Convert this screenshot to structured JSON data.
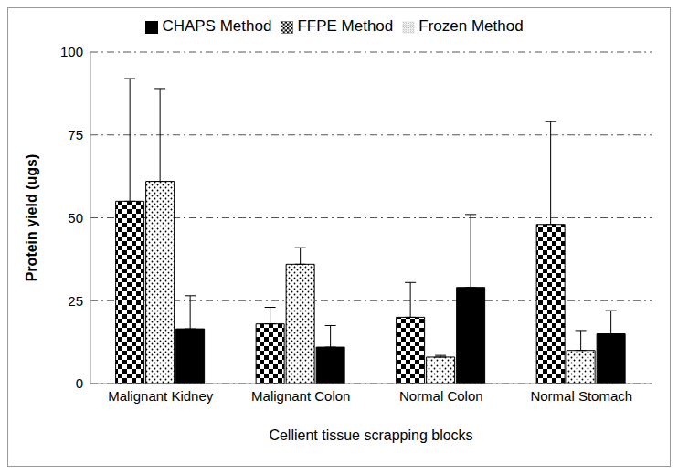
{
  "chart_data": {
    "type": "bar",
    "x_label": "Cellient tissue scrapping blocks",
    "y_label": "Protein yield (ugs)",
    "categories": [
      "Malignant Kidney",
      "Malignant Colon",
      "Normal Colon",
      "Normal Stomach"
    ],
    "series": [
      {
        "name": "FFPE Method",
        "color": "#000000",
        "values": [
          55,
          18,
          20,
          48
        ],
        "errors": [
          37,
          5,
          10.5,
          31
        ]
      },
      {
        "name": "Frozen Method",
        "color": "#000000",
        "values": [
          61,
          36,
          8,
          10
        ],
        "errors": [
          28,
          5,
          0.5,
          6
        ]
      },
      {
        "name": "CHAPS Method",
        "color": "#000000",
        "values": [
          16.5,
          11,
          29,
          15
        ],
        "errors": [
          10,
          6.5,
          22,
          7
        ]
      }
    ],
    "ylim": [
      0,
      100
    ],
    "yticks": [
      0,
      25,
      50,
      75,
      100
    ],
    "grid": true,
    "legend": "top"
  }
}
